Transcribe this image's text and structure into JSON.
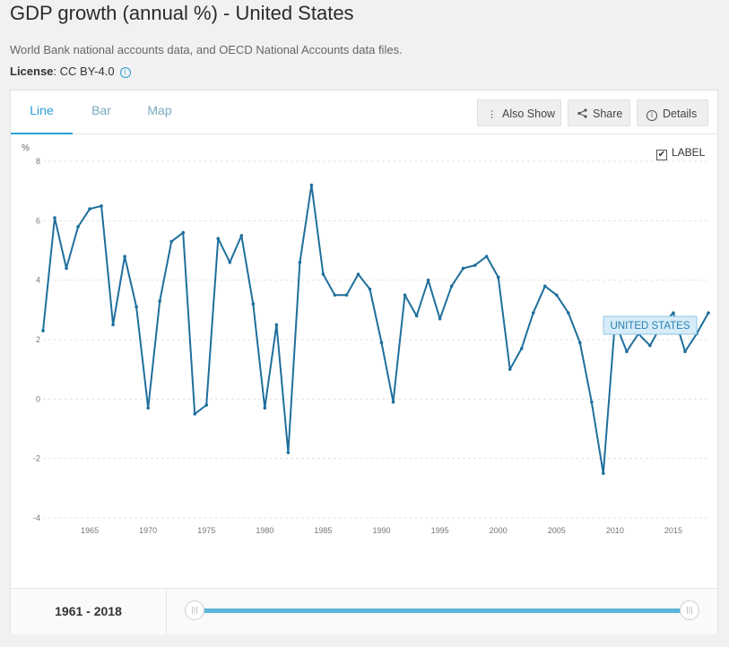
{
  "page": {
    "title": "GDP growth (annual %) - United States",
    "source": "World Bank national accounts data, and OECD National Accounts data files.",
    "license_label": "License",
    "license_value": ": CC BY-4.0"
  },
  "tabs": [
    "Line",
    "Bar",
    "Map"
  ],
  "toolbar": {
    "also_show": "Also Show",
    "share": "Share",
    "details": "Details"
  },
  "label_toggle": {
    "text": "LABEL",
    "checked": true
  },
  "footer": {
    "range": "1961 - 2018"
  },
  "colors": {
    "accent": "#2a9fd6",
    "line": "#1f6f9c",
    "slider": "#5bb5dc"
  },
  "chart_data": {
    "type": "line",
    "ylabel": "%",
    "ylim": [
      -4,
      8
    ],
    "yticks": [
      -4,
      -2,
      0,
      2,
      4,
      6,
      8
    ],
    "xlim": [
      1961,
      2018
    ],
    "xticks": [
      1965,
      1970,
      1975,
      1980,
      1985,
      1990,
      1995,
      2000,
      2005,
      2010,
      2015
    ],
    "grid": true,
    "series": [
      {
        "name": "UNITED STATES",
        "x": [
          1961,
          1962,
          1963,
          1964,
          1965,
          1966,
          1967,
          1968,
          1969,
          1970,
          1971,
          1972,
          1973,
          1974,
          1975,
          1976,
          1977,
          1978,
          1979,
          1980,
          1981,
          1982,
          1983,
          1984,
          1985,
          1986,
          1987,
          1988,
          1989,
          1990,
          1991,
          1992,
          1993,
          1994,
          1995,
          1996,
          1997,
          1998,
          1999,
          2000,
          2001,
          2002,
          2003,
          2004,
          2005,
          2006,
          2007,
          2008,
          2009,
          2010,
          2011,
          2012,
          2013,
          2014,
          2015,
          2016,
          2017,
          2018
        ],
        "values": [
          2.3,
          6.1,
          4.4,
          5.8,
          6.4,
          6.5,
          2.5,
          4.8,
          3.1,
          -0.3,
          3.3,
          5.3,
          5.6,
          -0.5,
          -0.2,
          5.4,
          4.6,
          5.5,
          3.2,
          -0.3,
          2.5,
          -1.8,
          4.6,
          7.2,
          4.2,
          3.5,
          3.5,
          4.2,
          3.7,
          1.9,
          -0.1,
          3.5,
          2.8,
          4.0,
          2.7,
          3.8,
          4.4,
          4.5,
          4.8,
          4.1,
          1.0,
          1.7,
          2.9,
          3.8,
          3.5,
          2.9,
          1.9,
          -0.1,
          -2.5,
          2.6,
          1.6,
          2.2,
          1.8,
          2.5,
          2.9,
          1.6,
          2.2,
          2.9
        ]
      }
    ]
  }
}
